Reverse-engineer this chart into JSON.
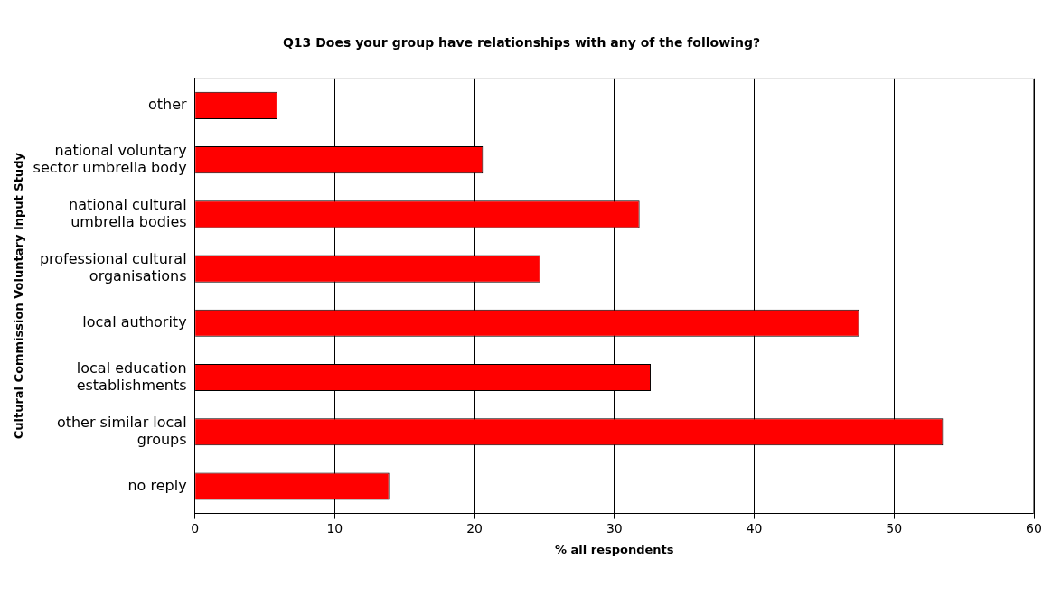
{
  "chart_data": {
    "type": "bar",
    "orientation": "horizontal",
    "title": "Q13 Does your group have relationships with any of the following?",
    "xlabel": "% all respondents",
    "ylabel": "Cultural Commission Voluntary Input Study",
    "categories": [
      "other",
      "national voluntary sector umbrella body",
      "national cultural umbrella bodies",
      "professional cultural organisations",
      "local authority",
      "local education establishments",
      "other similar local groups",
      "no reply"
    ],
    "values": [
      5.9,
      20.6,
      31.8,
      24.7,
      47.5,
      32.6,
      53.5,
      13.9
    ],
    "color": "#ff0000",
    "xlim": [
      0,
      60
    ],
    "xticks": [
      0,
      10,
      20,
      30,
      40,
      50,
      60
    ],
    "grid": "x",
    "legend": false
  }
}
